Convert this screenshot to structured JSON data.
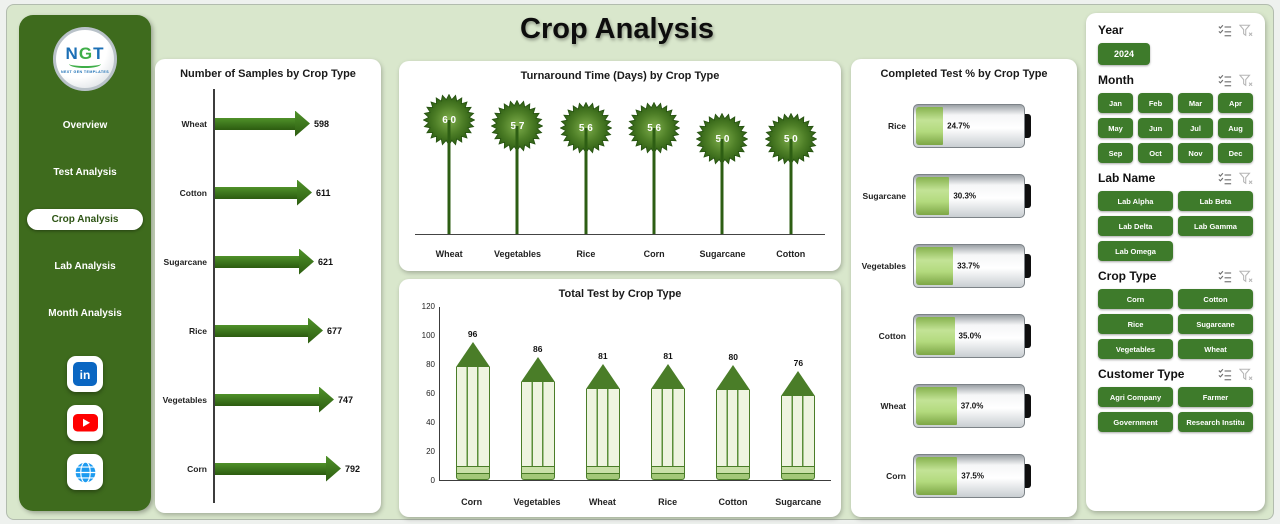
{
  "title": "Crop Analysis",
  "colors": {
    "sidebar_green": "#3e6b1d",
    "button_green": "#3e7b2b",
    "arrow_green": "#3a761b",
    "battery_fill_green": "#9fce66",
    "dashboard_background": "#d9e7cc",
    "card_background": "#ffffff"
  },
  "sidebar": {
    "logo": {
      "letters": [
        "N",
        "G",
        "T"
      ],
      "tagline": "NEXT GEN TEMPLATES"
    },
    "items": [
      {
        "label": "Overview",
        "active": false
      },
      {
        "label": "Test Analysis",
        "active": false
      },
      {
        "label": "Crop Analysis",
        "active": true
      },
      {
        "label": "Lab Analysis",
        "active": false
      },
      {
        "label": "Month Analysis",
        "active": false
      }
    ],
    "social": [
      "linkedin",
      "youtube",
      "website"
    ]
  },
  "chart_data": [
    {
      "type": "bar",
      "orientation": "horizontal",
      "title": "Number of Samples by Crop Type",
      "categories": [
        "Wheat",
        "Cotton",
        "Sugarcane",
        "Rice",
        "Vegetables",
        "Corn"
      ],
      "values": [
        598,
        611,
        621,
        677,
        747,
        792
      ],
      "xlabel": "",
      "ylabel": "",
      "grid": false,
      "legend": "none"
    },
    {
      "type": "bar",
      "orientation": "vertical",
      "title": "Turnaround Time (Days) by Crop Type",
      "categories": [
        "Wheat",
        "Vegetables",
        "Rice",
        "Corn",
        "Sugarcane",
        "Cotton"
      ],
      "values": [
        6.0,
        5.7,
        5.6,
        5.6,
        5.0,
        5.0
      ],
      "value_labels": [
        "6.0",
        "5.7",
        "5.6",
        "5.6",
        "5.0",
        "5.0"
      ],
      "marker": "tree",
      "grid": false,
      "legend": "none"
    },
    {
      "type": "bar",
      "orientation": "vertical",
      "title": "Total Test by Crop Type",
      "categories": [
        "Corn",
        "Vegetables",
        "Wheat",
        "Rice",
        "Cotton",
        "Sugarcane"
      ],
      "values": [
        96,
        86,
        81,
        81,
        80,
        76
      ],
      "ylim": [
        0,
        120
      ],
      "yticks": [
        0,
        20,
        40,
        60,
        80,
        100,
        120
      ],
      "marker": "pencil",
      "grid": false,
      "legend": "none"
    },
    {
      "type": "bar",
      "orientation": "horizontal",
      "title": "Completed Test % by Crop Type",
      "categories": [
        "Rice",
        "Sugarcane",
        "Vegetables",
        "Cotton",
        "Wheat",
        "Corn"
      ],
      "values": [
        24.7,
        30.3,
        33.7,
        35.0,
        37.0,
        37.5
      ],
      "value_labels": [
        "24.7%",
        "30.3%",
        "33.7%",
        "35.0%",
        "37.0%",
        "37.5%"
      ],
      "marker": "battery",
      "xlim": [
        0,
        100
      ],
      "grid": false,
      "legend": "none"
    }
  ],
  "filters": {
    "year": {
      "label": "Year",
      "options": [
        "2024"
      ]
    },
    "month": {
      "label": "Month",
      "options": [
        "Jan",
        "Feb",
        "Mar",
        "Apr",
        "May",
        "Jun",
        "Jul",
        "Aug",
        "Sep",
        "Oct",
        "Nov",
        "Dec"
      ]
    },
    "lab": {
      "label": "Lab Name",
      "options": [
        "Lab Alpha",
        "Lab Beta",
        "Lab Delta",
        "Lab Gamma",
        "Lab Omega"
      ]
    },
    "crop": {
      "label": "Crop Type",
      "options": [
        "Corn",
        "Cotton",
        "Rice",
        "Sugarcane",
        "Vegetables",
        "Wheat"
      ]
    },
    "customer": {
      "label": "Customer Type",
      "options": [
        "Agri Company",
        "Farmer",
        "Government",
        "Research Institu"
      ]
    }
  }
}
